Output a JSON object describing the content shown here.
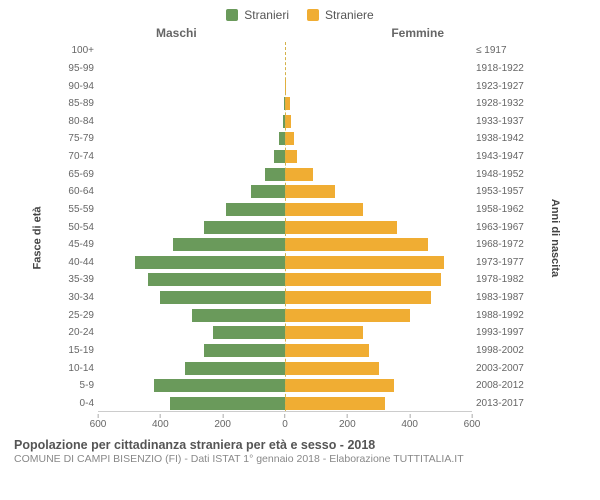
{
  "legend": {
    "male": {
      "label": "Stranieri",
      "color": "#6a9a5b"
    },
    "female": {
      "label": "Straniere",
      "color": "#f0ad33"
    }
  },
  "side_headers": {
    "left": "Maschi",
    "right": "Femmine"
  },
  "y_left_title": "Fasce di età",
  "y_right_title": "Anni di nascita",
  "axis": {
    "max": 600,
    "ticks_left": [
      600,
      400,
      200,
      0
    ],
    "ticks_right": [
      200,
      400,
      600
    ],
    "color": "#cccccc",
    "center_dash_color": "#d4b24a"
  },
  "rows": [
    {
      "age": "100+",
      "year": "≤ 1917",
      "m": 0,
      "f": 0
    },
    {
      "age": "95-99",
      "year": "1918-1922",
      "m": 0,
      "f": 0
    },
    {
      "age": "90-94",
      "year": "1923-1927",
      "m": 0,
      "f": 2
    },
    {
      "age": "85-89",
      "year": "1928-1932",
      "m": 2,
      "f": 15
    },
    {
      "age": "80-84",
      "year": "1933-1937",
      "m": 6,
      "f": 20
    },
    {
      "age": "75-79",
      "year": "1938-1942",
      "m": 20,
      "f": 30
    },
    {
      "age": "70-74",
      "year": "1943-1947",
      "m": 35,
      "f": 40
    },
    {
      "age": "65-69",
      "year": "1948-1952",
      "m": 65,
      "f": 90
    },
    {
      "age": "60-64",
      "year": "1953-1957",
      "m": 110,
      "f": 160
    },
    {
      "age": "55-59",
      "year": "1958-1962",
      "m": 190,
      "f": 250
    },
    {
      "age": "50-54",
      "year": "1963-1967",
      "m": 260,
      "f": 360
    },
    {
      "age": "45-49",
      "year": "1968-1972",
      "m": 360,
      "f": 460
    },
    {
      "age": "40-44",
      "year": "1973-1977",
      "m": 480,
      "f": 510
    },
    {
      "age": "35-39",
      "year": "1978-1982",
      "m": 440,
      "f": 500
    },
    {
      "age": "30-34",
      "year": "1983-1987",
      "m": 400,
      "f": 470
    },
    {
      "age": "25-29",
      "year": "1988-1992",
      "m": 300,
      "f": 400
    },
    {
      "age": "20-24",
      "year": "1993-1997",
      "m": 230,
      "f": 250
    },
    {
      "age": "15-19",
      "year": "1998-2002",
      "m": 260,
      "f": 270
    },
    {
      "age": "10-14",
      "year": "2003-2007",
      "m": 320,
      "f": 300
    },
    {
      "age": "5-9",
      "year": "2008-2012",
      "m": 420,
      "f": 350
    },
    {
      "age": "0-4",
      "year": "2013-2017",
      "m": 370,
      "f": 320
    }
  ],
  "footer": {
    "title": "Popolazione per cittadinanza straniera per età e sesso - 2018",
    "subtitle": "COMUNE DI CAMPI BISENZIO (FI) - Dati ISTAT 1° gennaio 2018 - Elaborazione TUTTITALIA.IT"
  },
  "style": {
    "bg": "#ffffff",
    "text_muted": "#666666",
    "label_fontsize": 10,
    "legend_fontsize": 12,
    "title_fontsize": 12.5,
    "subtitle_fontsize": 10.5
  }
}
